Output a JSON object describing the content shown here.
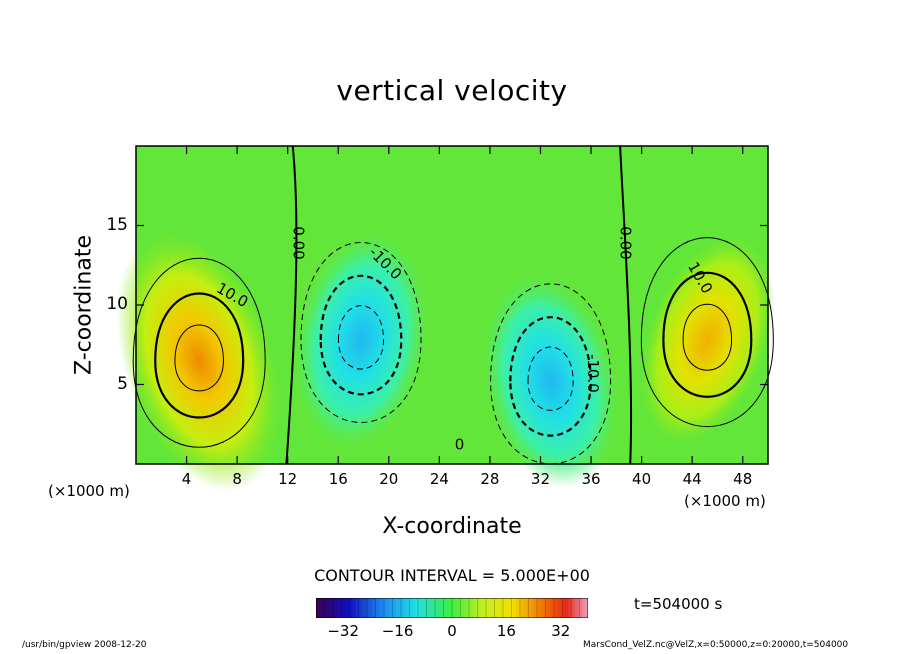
{
  "chart_data": {
    "type": "heatmap",
    "title": "vertical velocity",
    "xlabel": "X-coordinate",
    "ylabel": "Z-coordinate",
    "x_unit": "(×1000 m)",
    "x_range": [
      0,
      50
    ],
    "y_range": [
      0,
      20
    ],
    "x_ticks": [
      4,
      8,
      12,
      16,
      20,
      24,
      28,
      32,
      36,
      40,
      44,
      48
    ],
    "y_ticks": [
      5,
      10,
      15
    ],
    "contour_labels": [
      {
        "text": "0.00",
        "x": 12.8,
        "y": 13.9,
        "angle": 90
      },
      {
        "text": "-10.0",
        "x": 19.7,
        "y": 12.6,
        "angle": 45
      },
      {
        "text": "10.0",
        "x": 7.6,
        "y": 10.6,
        "angle": 30
      },
      {
        "text": "0.00",
        "x": 38.7,
        "y": 13.9,
        "angle": 90
      },
      {
        "text": "10.0",
        "x": 44.6,
        "y": 11.7,
        "angle": 60
      },
      {
        "text": "-10.0",
        "x": 36.1,
        "y": 5.7,
        "angle": 90
      },
      {
        "text": "0",
        "x": 25.6,
        "y": 1.2,
        "angle": 0
      }
    ],
    "features": [
      {
        "kind": "updraft",
        "center": [
          5,
          6.5
        ],
        "peak": 25
      },
      {
        "kind": "downdraft",
        "center": [
          17.8,
          7.8
        ],
        "peak": -18
      },
      {
        "kind": "downdraft",
        "center": [
          32.8,
          5.2
        ],
        "peak": -18
      },
      {
        "kind": "updraft",
        "center": [
          45.2,
          7.8
        ],
        "peak": 20
      }
    ],
    "contour_interval": "CONTOUR INTERVAL = 5.000E+00",
    "colorbar": {
      "range": [
        -40,
        40
      ],
      "ticks": [
        -32,
        -16,
        0,
        16,
        32
      ]
    },
    "time": "t=504000 s"
  },
  "footer": {
    "left": "/usr/bin/gpview  2008-12-20",
    "right": "MarsCond_VelZ.nc@VelZ,x=0:50000,z=0:20000,t=504000"
  }
}
